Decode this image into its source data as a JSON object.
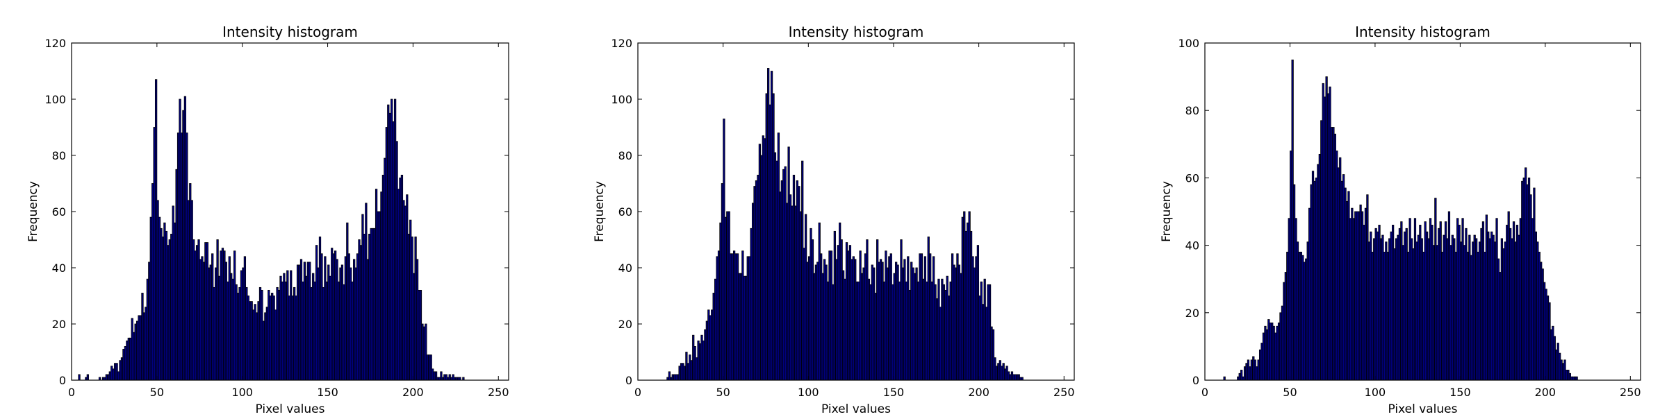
{
  "chart_data": [
    {
      "type": "bar",
      "title": "Intensity histogram",
      "xlabel": "Pixel values",
      "ylabel": "Frequency",
      "xlim": [
        0,
        256
      ],
      "ylim": [
        0,
        120
      ],
      "xticks": [
        0,
        50,
        100,
        150,
        200,
        250
      ],
      "yticks": [
        0,
        20,
        40,
        60,
        80,
        100,
        120
      ],
      "bar_color": "#00007f",
      "grid": false,
      "bin_start": 0,
      "bin_width": 1,
      "values": [
        0,
        0,
        0,
        0,
        2,
        0,
        0,
        0,
        1,
        2,
        0,
        0,
        0,
        0,
        0,
        0,
        1,
        0,
        1,
        1,
        2,
        2,
        3,
        5,
        4,
        6,
        6,
        3,
        7,
        8,
        11,
        12,
        14,
        15,
        15,
        22,
        17,
        20,
        21,
        23,
        23,
        31,
        24,
        26,
        36,
        42,
        58,
        70,
        90,
        107,
        64,
        58,
        54,
        51,
        56,
        53,
        48,
        50,
        52,
        62,
        56,
        75,
        88,
        100,
        88,
        96,
        101,
        88,
        64,
        70,
        64,
        50,
        46,
        48,
        50,
        43,
        44,
        42,
        49,
        49,
        40,
        41,
        45,
        33,
        40,
        50,
        37,
        46,
        47,
        46,
        42,
        35,
        44,
        38,
        36,
        46,
        34,
        31,
        33,
        39,
        40,
        44,
        33,
        30,
        28,
        28,
        25,
        27,
        24,
        28,
        33,
        32,
        21,
        24,
        26,
        32,
        30,
        31,
        30,
        25,
        33,
        32,
        37,
        35,
        38,
        35,
        39,
        30,
        39,
        30,
        33,
        30,
        41,
        41,
        43,
        35,
        42,
        37,
        42,
        42,
        33,
        38,
        35,
        48,
        40,
        51,
        45,
        33,
        44,
        35,
        41,
        37,
        47,
        45,
        46,
        43,
        35,
        40,
        41,
        34,
        44,
        56,
        45,
        40,
        35,
        43,
        40,
        45,
        50,
        48,
        59,
        52,
        63,
        43,
        52,
        54,
        54,
        54,
        68,
        60,
        60,
        67,
        73,
        79,
        90,
        98,
        95,
        100,
        92,
        100,
        85,
        68,
        72,
        73,
        64,
        62,
        66,
        52,
        57,
        51,
        38,
        51,
        43,
        32,
        32,
        20,
        19,
        20,
        9,
        9,
        9,
        4,
        3,
        3,
        1,
        1,
        3,
        1,
        2,
        2,
        1,
        2,
        1,
        2,
        1,
        1,
        1,
        1,
        0,
        1,
        0,
        0,
        0,
        0,
        0,
        0,
        0,
        0,
        0,
        0,
        0,
        0,
        0,
        0,
        0,
        0,
        0,
        0,
        0,
        0,
        0,
        0,
        0,
        0,
        0,
        0,
        0,
        0,
        0,
        0,
        0,
        0,
        0
      ]
    },
    {
      "type": "bar",
      "title": "Intensity histogram",
      "xlabel": "Pixel values",
      "ylabel": "Frequency",
      "xlim": [
        0,
        256
      ],
      "ylim": [
        0,
        120
      ],
      "xticks": [
        0,
        50,
        100,
        150,
        200,
        250
      ],
      "yticks": [
        0,
        20,
        40,
        60,
        80,
        100,
        120
      ],
      "bar_color": "#00007f",
      "grid": false,
      "bin_start": 0,
      "bin_width": 1,
      "values": [
        0,
        0,
        0,
        0,
        0,
        0,
        0,
        0,
        0,
        0,
        0,
        0,
        0,
        0,
        0,
        0,
        0,
        1,
        3,
        1,
        2,
        2,
        2,
        2,
        5,
        6,
        6,
        5,
        10,
        6,
        9,
        7,
        16,
        12,
        8,
        14,
        13,
        16,
        14,
        18,
        21,
        25,
        23,
        25,
        31,
        36,
        44,
        46,
        56,
        70,
        93,
        58,
        60,
        60,
        45,
        45,
        46,
        45,
        45,
        38,
        38,
        46,
        37,
        37,
        44,
        44,
        54,
        63,
        69,
        71,
        73,
        84,
        80,
        87,
        86,
        102,
        111,
        98,
        110,
        102,
        81,
        78,
        88,
        67,
        71,
        75,
        76,
        63,
        83,
        66,
        62,
        73,
        62,
        71,
        69,
        60,
        78,
        47,
        59,
        42,
        44,
        54,
        50,
        38,
        41,
        42,
        56,
        45,
        38,
        43,
        41,
        35,
        46,
        46,
        34,
        53,
        43,
        48,
        56,
        50,
        39,
        36,
        49,
        46,
        48,
        43,
        44,
        43,
        35,
        35,
        46,
        38,
        40,
        45,
        50,
        36,
        34,
        41,
        40,
        31,
        50,
        42,
        43,
        42,
        35,
        46,
        40,
        44,
        45,
        34,
        38,
        42,
        41,
        35,
        50,
        40,
        43,
        35,
        44,
        32,
        42,
        40,
        38,
        40,
        35,
        45,
        45,
        36,
        44,
        35,
        51,
        45,
        35,
        44,
        34,
        29,
        36,
        26,
        36,
        34,
        32,
        37,
        30,
        35,
        45,
        41,
        40,
        45,
        41,
        38,
        58,
        60,
        53,
        56,
        60,
        53,
        44,
        40,
        44,
        48,
        30,
        35,
        27,
        36,
        26,
        34,
        34,
        19,
        18,
        8,
        5,
        6,
        7,
        5,
        6,
        4,
        5,
        3,
        2,
        3,
        2,
        2,
        2,
        2,
        1,
        1,
        0,
        0,
        0,
        0,
        0,
        0,
        0,
        0,
        0,
        0,
        0,
        0,
        0,
        0,
        0,
        0
      ]
    },
    {
      "type": "bar",
      "title": "Intensity histogram",
      "xlabel": "Pixel values",
      "ylabel": "Frequency",
      "xlim": [
        0,
        256
      ],
      "ylim": [
        0,
        100
      ],
      "xticks": [
        0,
        50,
        100,
        150,
        200,
        250
      ],
      "yticks": [
        0,
        20,
        40,
        60,
        80,
        100
      ],
      "bar_color": "#00007f",
      "grid": false,
      "bin_start": 0,
      "bin_width": 1,
      "values": [
        0,
        0,
        0,
        0,
        0,
        0,
        0,
        0,
        0,
        0,
        0,
        1,
        0,
        0,
        0,
        0,
        0,
        0,
        0,
        1,
        2,
        3,
        1,
        4,
        5,
        6,
        4,
        6,
        7,
        6,
        4,
        6,
        9,
        11,
        14,
        16,
        15,
        18,
        17,
        17,
        16,
        14,
        16,
        17,
        20,
        22,
        29,
        32,
        38,
        48,
        68,
        95,
        58,
        48,
        41,
        38,
        38,
        37,
        35,
        36,
        41,
        51,
        58,
        62,
        59,
        60,
        64,
        67,
        77,
        88,
        84,
        90,
        85,
        87,
        75,
        75,
        73,
        68,
        63,
        66,
        59,
        61,
        57,
        53,
        56,
        48,
        51,
        48,
        50,
        50,
        50,
        52,
        50,
        46,
        51,
        55,
        41,
        44,
        38,
        42,
        45,
        44,
        46,
        42,
        43,
        38,
        41,
        38,
        42,
        44,
        46,
        39,
        42,
        43,
        45,
        47,
        40,
        44,
        45,
        38,
        48,
        42,
        39,
        48,
        41,
        43,
        46,
        42,
        38,
        47,
        44,
        42,
        48,
        46,
        40,
        54,
        40,
        45,
        47,
        38,
        43,
        47,
        42,
        50,
        40,
        43,
        42,
        38,
        48,
        46,
        41,
        48,
        40,
        45,
        38,
        43,
        37,
        41,
        43,
        42,
        38,
        41,
        45,
        47,
        38,
        49,
        44,
        42,
        44,
        43,
        41,
        48,
        36,
        32,
        42,
        39,
        41,
        46,
        50,
        45,
        42,
        47,
        41,
        46,
        43,
        48,
        59,
        60,
        63,
        58,
        60,
        55,
        48,
        57,
        44,
        41,
        38,
        35,
        33,
        29,
        27,
        25,
        23,
        15,
        16,
        13,
        9,
        11,
        8,
        6,
        5,
        6,
        3,
        3,
        2,
        1,
        1,
        1,
        1,
        0,
        0,
        0,
        0,
        0,
        0,
        0,
        0,
        0,
        0,
        0,
        0,
        0,
        0,
        0,
        0,
        0,
        0,
        0,
        0,
        0,
        0,
        0,
        0,
        0,
        0,
        0,
        0,
        0,
        0,
        0,
        0,
        0,
        0,
        0,
        0,
        0,
        0,
        0,
        0,
        0
      ]
    }
  ]
}
